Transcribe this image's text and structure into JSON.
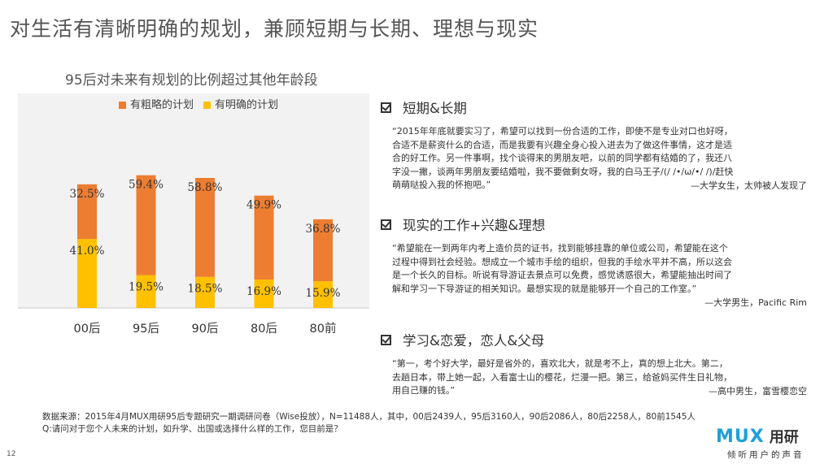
{
  "page": {
    "title": "对生活有清晰明确的规划，兼顾短期与长期、理想与现实",
    "page_number": "12"
  },
  "chart": {
    "title": "95后对未来有规划的比例超过其他年龄段"
  },
  "chart_data": {
    "type": "bar",
    "stacked": true,
    "categories": [
      "00后",
      "95后",
      "90后",
      "80后",
      "80前"
    ],
    "series": [
      {
        "name": "有明确的计划",
        "values": [
          41.0,
          19.5,
          18.5,
          16.9,
          15.9
        ],
        "labels": [
          "41.0%",
          "19.5%",
          "18.5%",
          "16.9%",
          "15.9%"
        ],
        "color": "#ffc000"
      },
      {
        "name": "有粗略的计划",
        "values": [
          32.5,
          59.4,
          58.8,
          49.9,
          36.8
        ],
        "labels": [
          "32.5%",
          "59.4%",
          "58.8%",
          "49.9%",
          "36.8%"
        ],
        "color": "#ed7d31"
      }
    ],
    "legend_order": [
      "有粗略的计划",
      "有明确的计划"
    ],
    "legend_position": "top",
    "ylim": [
      0,
      100
    ],
    "grid": false,
    "axis_line_color": "#d9d9d9",
    "background": "#f2f2f2"
  },
  "sections": [
    {
      "heading": "短期&长期",
      "lines": [
        "“2015年年底就要实习了，希望可以找到一份合适的工作，即使不是专业对口也好呀，",
        "合适不是薪资什么的合适，而是我要有兴趣全身心投入进去为了做这件事情，这才是适",
        "合的好工作。另一件事啊，找个谈得来的男朋友吧，以前的同学都有结婚的了，我还八",
        "字没一撇，谈两年男朋友要结婚啦，我不要做剩女呀，我的白马王子/(/ /•/ω/•/ /)/赶快",
        "萌萌哒投入我的怀抱吧。”"
      ],
      "signature": "—大学女生，太帅被人发现了"
    },
    {
      "heading": "现实的工作+兴趣&理想",
      "lines": [
        "“希望能在一到两年内考上造价员的证书，找到能够挂靠的单位或公司，希望能在这个",
        "过程中得到社会经验。想成立一个城市手绘的组织，但我的手绘水平并不高，所以这会",
        "是一个长久的目标。听说有导游证去景点可以免费，感觉诱惑很大，希望能抽出时间了",
        "解和学习一下导游证的相关知识。最想实现的就是能够开一个自己的工作室。”",
        ""
      ],
      "signature": "—大学男生，Pacific Rim"
    },
    {
      "heading": "学习&恋爱，恋人&父母",
      "lines": [
        "“第一，考个好大学，最好是省外的，喜欢北大，就是考不上，真的想上北大。第二，",
        "去趟日本，带上她一起，入看富士山的樱花，烂漫一把。第三，给爸妈买件生日礼物，",
        "用自己赚的钱。”"
      ],
      "signature": "—高中男生，富雪樱恋空"
    }
  ],
  "footer": {
    "source": "数据来源：2015年4月MUX用研95后专题研究一期调研问卷（Wise投放），N=11488人，其中，00后2439人，95后3160人，90后2086人，80后2258人，80前1545人",
    "question": "Q:请问对于您个人未来的计划，如升学、出国或选择什么样的工作，您目前是？"
  },
  "logo": {
    "mark": "MUX",
    "name": "用研",
    "slogan": "倾听用户的声音",
    "color": "#1ea0d8"
  }
}
